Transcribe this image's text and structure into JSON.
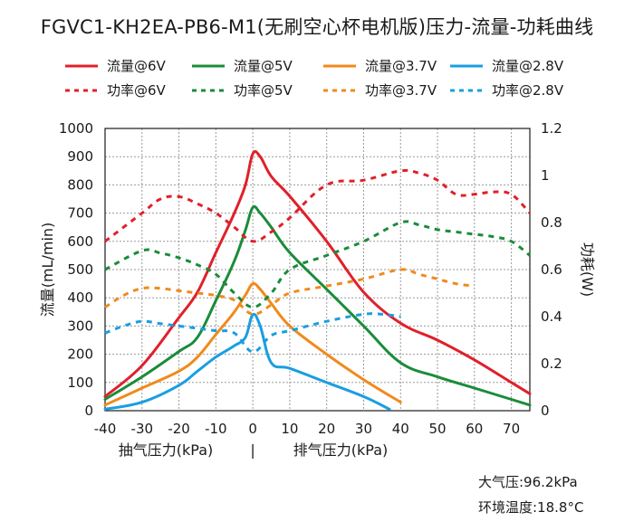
{
  "title": "FGVC1-KH2EA-PB6-M1(无刷空心杯电机版)压力-流量-功耗曲线",
  "notes": {
    "pressure": "大气压:96.2kPa",
    "temperature": "环境温度:18.8°C"
  },
  "chart_data": {
    "type": "line",
    "title": "FGVC1-KH2EA-PB6-M1(无刷空心杯电机版)压力-流量-功耗曲线",
    "ylabel": "流量(mL/min)",
    "y2label": "功耗(W)",
    "xlim": [
      -40,
      75
    ],
    "ylim": [
      0,
      1000
    ],
    "y2lim": [
      0,
      1.2
    ],
    "x_ticks": [
      "-40",
      "-30",
      "-20",
      "-10",
      "0",
      "10",
      "20",
      "30",
      "40",
      "50",
      "60",
      "70"
    ],
    "y_ticks": [
      "0",
      "100",
      "200",
      "300",
      "400",
      "500",
      "600",
      "700",
      "800",
      "900",
      "1000"
    ],
    "y2_ticks": [
      "0",
      "0.2",
      "0.4",
      "0.6",
      "0.8",
      "1",
      "1.2"
    ],
    "x_sublabels": {
      "left": "抽气压力(kPa)",
      "sep": "|",
      "right": "排气压力(kPa)"
    },
    "grid": true,
    "legend_position": "top",
    "series": [
      {
        "name": "流量@6V",
        "axis": "left",
        "style": "solid",
        "color": "#e0202a",
        "x": [
          -40,
          -30,
          -20,
          -15,
          -10,
          -5,
          -2,
          0,
          2,
          5,
          10,
          20,
          30,
          40,
          50,
          60,
          70,
          75
        ],
        "y": [
          50,
          160,
          330,
          420,
          560,
          700,
          800,
          910,
          900,
          830,
          760,
          600,
          420,
          310,
          250,
          180,
          100,
          60
        ]
      },
      {
        "name": "流量@5V",
        "axis": "left",
        "style": "solid",
        "color": "#1a8c3a",
        "x": [
          -40,
          -30,
          -20,
          -15,
          -10,
          -5,
          -2,
          0,
          2,
          5,
          10,
          20,
          30,
          40,
          50,
          60,
          70,
          75
        ],
        "y": [
          40,
          120,
          210,
          260,
          390,
          530,
          640,
          720,
          700,
          650,
          560,
          430,
          300,
          170,
          120,
          80,
          40,
          20
        ]
      },
      {
        "name": "流量@3.7V",
        "axis": "left",
        "style": "solid",
        "color": "#f08a1c",
        "x": [
          -40,
          -30,
          -20,
          -15,
          -10,
          -5,
          -2,
          0,
          2,
          5,
          10,
          20,
          30,
          40
        ],
        "y": [
          20,
          80,
          140,
          190,
          270,
          350,
          410,
          450,
          430,
          380,
          300,
          200,
          110,
          30
        ]
      },
      {
        "name": "流量@2.8V",
        "axis": "left",
        "style": "solid",
        "color": "#1a9ee0",
        "x": [
          -40,
          -30,
          -20,
          -15,
          -10,
          -5,
          -2,
          0,
          2,
          5,
          10,
          20,
          30,
          37
        ],
        "y": [
          5,
          30,
          90,
          140,
          190,
          230,
          260,
          340,
          300,
          170,
          150,
          100,
          50,
          5
        ]
      },
      {
        "name": "功率@6V",
        "axis": "right",
        "style": "dashed",
        "color": "#e0202a",
        "x": [
          -40,
          -30,
          -25,
          -20,
          -15,
          -10,
          -5,
          0,
          5,
          10,
          20,
          30,
          40,
          45,
          50,
          55,
          60,
          65,
          70,
          75
        ],
        "y": [
          0.72,
          0.84,
          0.9,
          0.91,
          0.88,
          0.84,
          0.78,
          0.72,
          0.76,
          0.82,
          0.96,
          0.98,
          1.02,
          1.01,
          0.98,
          0.92,
          0.92,
          0.93,
          0.92,
          0.84
        ]
      },
      {
        "name": "功率@5V",
        "axis": "right",
        "style": "dashed",
        "color": "#1a8c3a",
        "x": [
          -40,
          -30,
          -25,
          -20,
          -15,
          -10,
          -5,
          0,
          5,
          10,
          20,
          30,
          40,
          45,
          50,
          55,
          60,
          65,
          70,
          75
        ],
        "y": [
          0.6,
          0.68,
          0.67,
          0.65,
          0.62,
          0.58,
          0.5,
          0.44,
          0.5,
          0.6,
          0.66,
          0.72,
          0.8,
          0.79,
          0.77,
          0.76,
          0.75,
          0.74,
          0.72,
          0.66
        ]
      },
      {
        "name": "功率@3.7V",
        "axis": "right",
        "style": "dashed",
        "color": "#f08a1c",
        "x": [
          -40,
          -35,
          -30,
          -25,
          -20,
          -15,
          -10,
          -5,
          0,
          5,
          10,
          20,
          30,
          40,
          45,
          50,
          55,
          60
        ],
        "y": [
          0.44,
          0.49,
          0.52,
          0.52,
          0.51,
          0.5,
          0.49,
          0.47,
          0.41,
          0.45,
          0.5,
          0.53,
          0.56,
          0.6,
          0.58,
          0.56,
          0.54,
          0.53
        ]
      },
      {
        "name": "功率@2.8V",
        "axis": "right",
        "style": "dashed",
        "color": "#1a9ee0",
        "x": [
          -40,
          -35,
          -30,
          -25,
          -20,
          -15,
          -10,
          -5,
          0,
          5,
          10,
          20,
          30,
          35,
          40
        ],
        "y": [
          0.33,
          0.36,
          0.38,
          0.37,
          0.36,
          0.35,
          0.34,
          0.33,
          0.25,
          0.32,
          0.34,
          0.38,
          0.41,
          0.41,
          0.4
        ]
      }
    ]
  }
}
